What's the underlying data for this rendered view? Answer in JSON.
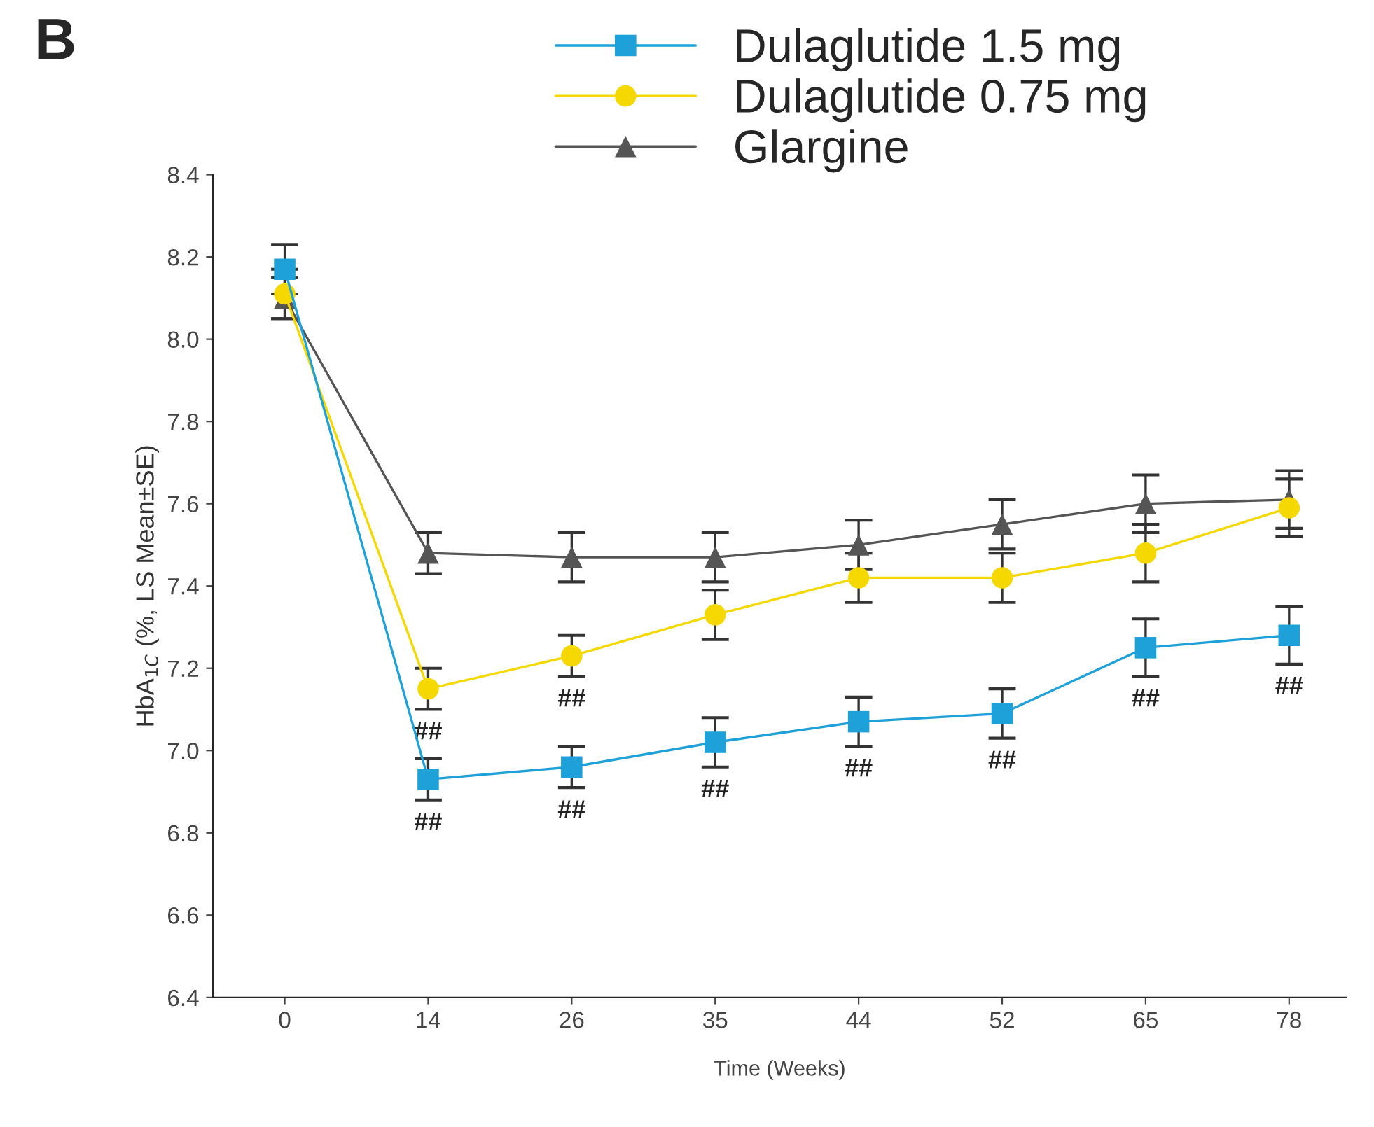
{
  "chart_data": {
    "type": "line",
    "title": "B",
    "xlabel": "Time (Weeks)",
    "ylabel": "HbA$_{1C}$ (%, LS Mean±SE)",
    "categories": [
      "0",
      "14",
      "26",
      "35",
      "44",
      "52",
      "65",
      "78"
    ],
    "series": [
      {
        "name": "Dulaglutide 1.5 mg",
        "color": "#1ea0d8",
        "marker": "square",
        "values": [
          8.17,
          6.93,
          6.96,
          7.02,
          7.07,
          7.09,
          7.25,
          7.28
        ],
        "value_labels": [
          null,
          "##",
          "##",
          "##",
          "##",
          "##",
          "##",
          "##"
        ],
        "errors": [
          0.06,
          0.05,
          0.05,
          0.06,
          0.06,
          0.06,
          0.07,
          0.07
        ]
      },
      {
        "name": "Dulaglutide 0.75 mg",
        "color": "#f5d800",
        "marker": "circle",
        "values": [
          8.11,
          7.15,
          7.23,
          7.33,
          7.42,
          7.42,
          7.48,
          7.59
        ],
        "value_labels": [
          null,
          "##",
          "##",
          null,
          null,
          null,
          null,
          null
        ],
        "errors": [
          0.06,
          0.05,
          0.05,
          0.06,
          0.06,
          0.06,
          0.07,
          0.07
        ]
      },
      {
        "name": "Glargine",
        "color": "#555555",
        "marker": "triangle",
        "values": [
          8.1,
          7.48,
          7.47,
          7.47,
          7.5,
          7.55,
          7.6,
          7.61
        ],
        "errors": [
          0.05,
          0.05,
          0.06,
          0.06,
          0.06,
          0.06,
          0.07,
          0.07
        ]
      }
    ],
    "ylim": [
      6.4,
      8.4
    ],
    "yticks": [
      6.4,
      6.6,
      6.8,
      {
        "value": 7.0,
        "label": "7.0"
      },
      7.2,
      7.4,
      7.6,
      7.8,
      {
        "value": 8.0,
        "label": "8.0"
      },
      8.2,
      8.4
    ],
    "legend": "top",
    "grid": false
  }
}
